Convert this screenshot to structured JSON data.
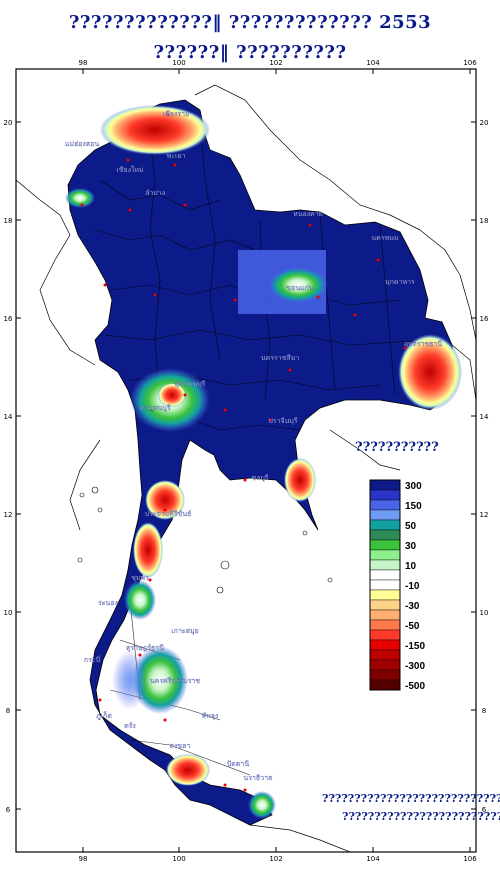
{
  "title_line1": "?????????????‖   ????????????? 2553",
  "title_line2": "??????‖   ??????????",
  "legend_title": "???????????",
  "footnote_line1": "??????????????????????????????",
  "footnote_line2": "?????????????????????????",
  "x_ticks": [
    "98",
    "100",
    "102",
    "104",
    "106"
  ],
  "y_ticks": [
    "20",
    "18",
    "16",
    "14",
    "12",
    "10",
    "8",
    "6"
  ],
  "legend": [
    {
      "label": "300",
      "color": "#0d1a8a"
    },
    {
      "label": "",
      "color": "#2a34c8"
    },
    {
      "label": "150",
      "color": "#4a64e8"
    },
    {
      "label": "",
      "color": "#6f9cf5"
    },
    {
      "label": "50",
      "color": "#12a0a0"
    },
    {
      "label": "",
      "color": "#2e8b57"
    },
    {
      "label": "30",
      "color": "#3cc33c"
    },
    {
      "label": "",
      "color": "#8ef08e"
    },
    {
      "label": "10",
      "color": "#c8f5c8"
    },
    {
      "label": "",
      "color": "#ffffff"
    },
    {
      "label": "-10",
      "color": "#ffffff"
    },
    {
      "label": "",
      "color": "#ffff96"
    },
    {
      "label": "-30",
      "color": "#ffd28a"
    },
    {
      "label": "",
      "color": "#ffb070"
    },
    {
      "label": "-50",
      "color": "#ff7a4a"
    },
    {
      "label": "",
      "color": "#ff3a2a"
    },
    {
      "label": "-150",
      "color": "#e80000"
    },
    {
      "label": "",
      "color": "#c00000"
    },
    {
      "label": "-300",
      "color": "#a00000"
    },
    {
      "label": "",
      "color": "#800000"
    },
    {
      "label": "-500",
      "color": "#550000"
    }
  ],
  "place_labels": [
    {
      "name": "เชียงราย"
    },
    {
      "name": "แม่ฮ่องสอน"
    },
    {
      "name": "พะเยา"
    },
    {
      "name": "เชียงใหม่"
    },
    {
      "name": "ลำปาง"
    },
    {
      "name": "หนองคาย"
    },
    {
      "name": "นครพนม"
    },
    {
      "name": "ขอนแก่น"
    },
    {
      "name": "มุกดาหาร"
    },
    {
      "name": "อุบลราชธานี"
    },
    {
      "name": "นครราชสีมา"
    },
    {
      "name": "สุพรรณบุรี"
    },
    {
      "name": "กาญจนบุรี"
    },
    {
      "name": "ปราจีนบุรี"
    },
    {
      "name": "ประจวบคีรีขันธ์"
    },
    {
      "name": "ชลบุรี"
    },
    {
      "name": "ชุมพร"
    },
    {
      "name": "ระนอง"
    },
    {
      "name": "สุราษฎร์ธานี"
    },
    {
      "name": "กระบี่"
    },
    {
      "name": "นครศรีธรรมราช"
    },
    {
      "name": "ภูเก็ต"
    },
    {
      "name": "สงขลา"
    },
    {
      "name": "ปัตตานี"
    },
    {
      "name": "นราธิวาส"
    },
    {
      "name": "พัทลุง"
    },
    {
      "name": "ตรัง"
    },
    {
      "name": "เกาะสมุย"
    }
  ]
}
